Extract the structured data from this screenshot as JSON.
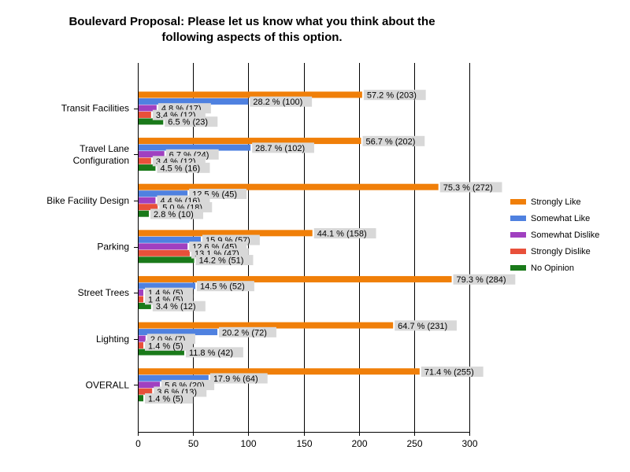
{
  "chart_data": {
    "type": "bar",
    "orientation": "horizontal",
    "title_lines": [
      "Boulevard Proposal: Please let us know what you think about the",
      "following aspects of this option."
    ],
    "categories": [
      [
        "Transit Facilities"
      ],
      [
        "Travel Lane",
        "Configuration"
      ],
      [
        "Bike Facility Design"
      ],
      [
        "Parking"
      ],
      [
        "Street Trees"
      ],
      [
        "Lighting"
      ],
      [
        "OVERALL"
      ]
    ],
    "xlim": [
      0,
      300
    ],
    "xticks": [
      "0",
      "50",
      "100",
      "150",
      "200",
      "250",
      "300"
    ],
    "xtick_values": [
      0,
      50,
      100,
      150,
      200,
      250,
      300
    ],
    "grid": true,
    "legend_position": "right",
    "series": [
      {
        "name": "Strongly Like",
        "color": "#f07f09",
        "values": [
          203,
          202,
          272,
          158,
          284,
          231,
          255
        ],
        "labels": [
          "57.2 % (203)",
          "56.7 % (202)",
          "75.3 % (272)",
          "44.1 % (158)",
          "79.3 % (284)",
          "64.7 % (231)",
          "71.4 % (255)"
        ]
      },
      {
        "name": "Somewhat Like",
        "color": "#4f81e0",
        "values": [
          100,
          102,
          45,
          57,
          52,
          72,
          64
        ],
        "labels": [
          "28.2 % (100)",
          "28.7 % (102)",
          "12.5 % (45)",
          "15.9 % (57)",
          "14.5 % (52)",
          "20.2 % (72)",
          "17.9 % (64)"
        ]
      },
      {
        "name": "Somewhat Dislike",
        "color": "#a040c0",
        "values": [
          17,
          24,
          16,
          45,
          5,
          7,
          20
        ],
        "labels": [
          "4.8 % (17)",
          "6.7 % (24)",
          "4.4 % (16)",
          "12.6 % (45)",
          "1.4 % (5)",
          "2.0 % (7)",
          "5.6 % (20)"
        ]
      },
      {
        "name": "Strongly Dislike",
        "color": "#e8503a",
        "values": [
          12,
          12,
          18,
          47,
          5,
          5,
          13
        ],
        "labels": [
          "3.4 % (12)",
          "3.4 % (12)",
          "5.0 % (18)",
          "13.1 % (47)",
          "1.4 % (5)",
          "1.4 % (5)",
          "3.6 % (13)"
        ]
      },
      {
        "name": "No Opinion",
        "color": "#1a7a1a",
        "values": [
          23,
          16,
          10,
          51,
          12,
          42,
          5
        ],
        "labels": [
          "6.5 % (23)",
          "4.5 % (16)",
          "2.8 % (10)",
          "14.2 % (51)",
          "3.4 % (12)",
          "11.8 % (42)",
          "1.4 % (5)"
        ]
      }
    ]
  }
}
